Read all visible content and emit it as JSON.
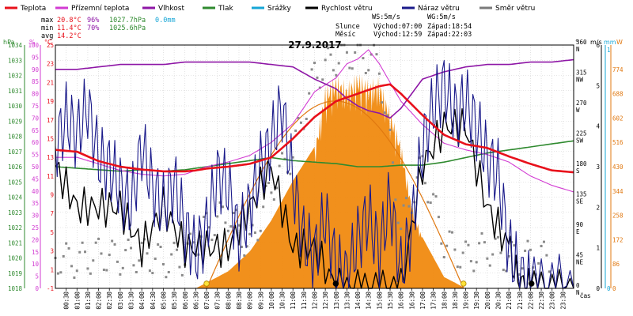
{
  "chart_data": {
    "type": "line",
    "title": "27.9.2017",
    "xlabel": "čas",
    "x_ticks": [
      "00:30",
      "01:00",
      "01:30",
      "02:00",
      "02:30",
      "03:00",
      "03:30",
      "04:00",
      "04:30",
      "05:00",
      "05:30",
      "06:00",
      "06:30",
      "07:00",
      "07:30",
      "08:00",
      "08:30",
      "09:00",
      "09:30",
      "10:00",
      "10:30",
      "11:00",
      "11:30",
      "12:00",
      "12:30",
      "13:00",
      "13:30",
      "14:00",
      "14:30",
      "15:00",
      "15:30",
      "16:00",
      "16:30",
      "17:00",
      "17:30",
      "18:00",
      "18:30",
      "19:00",
      "19:30",
      "20:00",
      "20:30",
      "21:00",
      "21:30",
      "22:00",
      "22:30",
      "23:00",
      "23:30"
    ],
    "legend": [
      {
        "name": "Teplota",
        "color": "#e8101b"
      },
      {
        "name": "Přízemní teplota",
        "color": "#d23bd2"
      },
      {
        "name": "Vlhkost",
        "color": "#8e16a6"
      },
      {
        "name": "Tlak",
        "color": "#2f8a2f"
      },
      {
        "name": "Srážky",
        "color": "#16a6d6"
      },
      {
        "name": "Rychlost větru",
        "color": "#000000"
      },
      {
        "name": "Náraz větru",
        "color": "#1a1a8a"
      },
      {
        "name": "Směr větru",
        "color": "#7a7a7a"
      }
    ],
    "stats": [
      {
        "label": "max",
        "temp": "20.8°C",
        "hum": "96%",
        "press": "1027.7hPa",
        "rain": "0.0mm"
      },
      {
        "label": "min",
        "temp": "11.4°C",
        "hum": "70%",
        "press": "1025.6hPa",
        "rain": ""
      },
      {
        "label": "avg",
        "temp": "14.2°C",
        "hum": "",
        "press": "",
        "rain": ""
      }
    ],
    "info": {
      "ws": "WS:5m/s",
      "wg": "WG:5m/s",
      "sun_label": "Slunce",
      "sun_rise": "Východ:07:00",
      "sun_set": "Západ:18:54",
      "moon_label": "Měsíc",
      "moon_rise": "Východ:12:59",
      "moon_set": "Západ:22:03"
    },
    "axes": {
      "hpa": {
        "unit": "hPa",
        "color": "#2f8a2f",
        "ticks": [
          "1018",
          "1019",
          "1020",
          "1021",
          "1022",
          "1023",
          "1024",
          "1025",
          "1026",
          "1027",
          "1028",
          "1029",
          "1030",
          "1031",
          "1032",
          "1033",
          "1034"
        ]
      },
      "pct": {
        "unit": "%",
        "color": "#d23bd2",
        "ticks": [
          "0",
          "5",
          "10",
          "15",
          "20",
          "25",
          "30",
          "35",
          "40",
          "45",
          "50",
          "55",
          "60",
          "65",
          "70",
          "75",
          "80",
          "85",
          "90",
          "95",
          "100"
        ]
      },
      "degc": {
        "unit": "°C",
        "color": "#e8101b",
        "ticks": [
          "-1",
          "1",
          "3",
          "5",
          "7",
          "9",
          "11",
          "13",
          "15",
          "17",
          "19",
          "21",
          "23",
          "25"
        ]
      },
      "deg": {
        "unit": "°",
        "ticks": [
          "0",
          "45",
          "90",
          "135",
          "180",
          "225",
          "270",
          "315",
          "360"
        ],
        "dirs": [
          "N",
          "NE",
          "E",
          "SE",
          "S",
          "SW",
          "W",
          "NW",
          "N"
        ]
      },
      "ms": {
        "unit": "m/s",
        "ticks": [
          "0",
          "1",
          "2",
          "3",
          "4",
          "5",
          "6"
        ]
      },
      "mm": {
        "unit": "mm",
        "color": "#16a6d6",
        "ticks": [
          "0",
          "1"
        ]
      },
      "wm2": {
        "unit": "W",
        "color": "#e07810",
        "ticks": [
          "0",
          "86",
          "172",
          "258",
          "344",
          "430",
          "516",
          "602",
          "688",
          "774"
        ]
      }
    },
    "series": [
      {
        "name": "Teplota",
        "unit": "°C",
        "x": [
          0,
          1,
          2,
          3,
          4,
          5,
          6,
          6.5,
          7,
          8,
          9,
          10,
          11,
          12,
          13,
          14,
          15,
          15.5,
          16,
          17,
          18,
          19,
          20,
          21,
          22,
          23,
          24
        ],
        "values": [
          13.8,
          13.6,
          12.6,
          12.0,
          11.7,
          11.5,
          11.5,
          11.6,
          11.8,
          12.0,
          12.3,
          13.0,
          15.0,
          17.3,
          19.0,
          19.8,
          20.6,
          20.8,
          19.8,
          17.5,
          15.4,
          14.4,
          14.0,
          13.1,
          12.3,
          11.6,
          11.4
        ]
      },
      {
        "name": "Přízemní teplota",
        "unit": "°C",
        "x": [
          0,
          1,
          2,
          3,
          4,
          5,
          6,
          7,
          8,
          9,
          10,
          11,
          12,
          13,
          13.5,
          14,
          14.5,
          15,
          15.5,
          16,
          17,
          18,
          19,
          20,
          21,
          22,
          23,
          24
        ],
        "values": [
          13.0,
          13.0,
          12.3,
          11.6,
          11.2,
          11.0,
          11.2,
          12.0,
          12.5,
          13.2,
          14.6,
          16.6,
          20.0,
          21.5,
          23.0,
          23.5,
          24.5,
          23.0,
          21.0,
          19.0,
          16.5,
          14.5,
          13.8,
          13.3,
          12.5,
          11.0,
          10.0,
          9.3
        ]
      },
      {
        "name": "Vlhkost",
        "unit": "%",
        "x": [
          0,
          1,
          2,
          3,
          4,
          5,
          6,
          7,
          8,
          9,
          10,
          11,
          12,
          12.5,
          13,
          13.5,
          14,
          14.5,
          15,
          15.5,
          16,
          16.5,
          17,
          18,
          19,
          20,
          21,
          22,
          23,
          24
        ],
        "values": [
          90,
          90,
          91,
          92,
          92,
          92,
          93,
          93,
          93,
          93,
          92,
          91,
          86,
          84,
          82,
          78,
          75,
          73,
          72,
          70,
          74,
          80,
          86,
          89,
          91,
          92,
          92,
          93,
          93,
          94
        ]
      },
      {
        "name": "Tlak",
        "unit": "hPa",
        "x": [
          0,
          1,
          2,
          3,
          4,
          5,
          6,
          7,
          8,
          9,
          10,
          11,
          12,
          13,
          14,
          15,
          16,
          17,
          18,
          19,
          20,
          21,
          22,
          23,
          24
        ],
        "values": [
          1026.0,
          1025.9,
          1025.8,
          1025.7,
          1025.8,
          1025.7,
          1025.8,
          1026.0,
          1026.2,
          1026.4,
          1026.6,
          1026.4,
          1026.3,
          1026.2,
          1026.0,
          1026.0,
          1026.1,
          1026.1,
          1026.3,
          1026.6,
          1026.9,
          1027.1,
          1027.3,
          1027.5,
          1027.7
        ]
      },
      {
        "name": "Rychlost větru",
        "unit": "m/s",
        "x": [
          0,
          1,
          2,
          3,
          4,
          5,
          6,
          7,
          8,
          9,
          10,
          11,
          12,
          13,
          14,
          15,
          16,
          17,
          18,
          19,
          20,
          21,
          21.5,
          22,
          23,
          24
        ],
        "values": [
          3,
          2,
          2,
          2,
          1,
          2,
          1,
          1,
          1,
          2,
          3,
          1,
          1,
          0,
          0,
          0,
          0,
          3,
          4,
          4,
          2,
          1,
          0,
          0,
          0,
          0
        ]
      },
      {
        "name": "Náraz větru",
        "unit": "m/s",
        "x": [
          0,
          0.5,
          1,
          1.5,
          2,
          2.5,
          3,
          3.5,
          4,
          4.5,
          5,
          5.5,
          6,
          6.5,
          7,
          7.5,
          8,
          8.5,
          9,
          9.5,
          10,
          10.5,
          11,
          11.5,
          12,
          12.5,
          13,
          13.5,
          14,
          14.5,
          15,
          15.5,
          16,
          16.5,
          17,
          17.5,
          18,
          18.5,
          19,
          19.5,
          20,
          20.5,
          21,
          21.5,
          22,
          23,
          24
        ],
        "values": [
          3.5,
          4.2,
          3.8,
          4.5,
          3.2,
          3.0,
          2.5,
          2.0,
          3.5,
          2.5,
          2.0,
          2.6,
          1.5,
          0.8,
          1.5,
          2.8,
          2.5,
          1.2,
          2.0,
          3.0,
          3.6,
          4.5,
          2.6,
          1.2,
          0.8,
          1.8,
          0.5,
          0.3,
          1.2,
          1.8,
          0.9,
          2.2,
          0.4,
          1.5,
          3.5,
          4.5,
          5.0,
          4.3,
          4.6,
          4.0,
          3.2,
          2.8,
          1.0,
          0.3,
          0,
          0,
          0
        ]
      },
      {
        "name": "Směr větru",
        "unit": "°",
        "x": [
          0,
          1,
          2,
          3,
          4,
          5,
          6,
          7,
          8,
          9,
          10,
          11,
          12,
          13,
          14,
          15,
          16,
          17,
          18,
          19,
          20,
          21,
          22,
          23
        ],
        "values": [
          45,
          40,
          50,
          45,
          50,
          40,
          45,
          90,
          110,
          60,
          150,
          200,
          315,
          340,
          350,
          330,
          90,
          180,
          70,
          45,
          60,
          45,
          45,
          45
        ]
      },
      {
        "name": "Slunce",
        "unit": "W",
        "x": [
          6.5,
          7,
          8,
          9,
          10,
          11,
          12,
          12.5,
          13,
          13.5,
          14,
          14.5,
          15,
          15.5,
          16,
          16.5,
          17,
          18,
          19
        ],
        "values": [
          0,
          20,
          60,
          130,
          240,
          380,
          500,
          720,
          760,
          730,
          770,
          740,
          750,
          640,
          520,
          300,
          180,
          40,
          0
        ]
      }
    ],
    "stat_markers": [
      {
        "name": "sunrise",
        "time": "07:00"
      },
      {
        "name": "sunset",
        "time": "18:54"
      },
      {
        "name": "moonrise",
        "time": "12:59"
      },
      {
        "name": "moonset",
        "time": "22:03"
      }
    ]
  }
}
